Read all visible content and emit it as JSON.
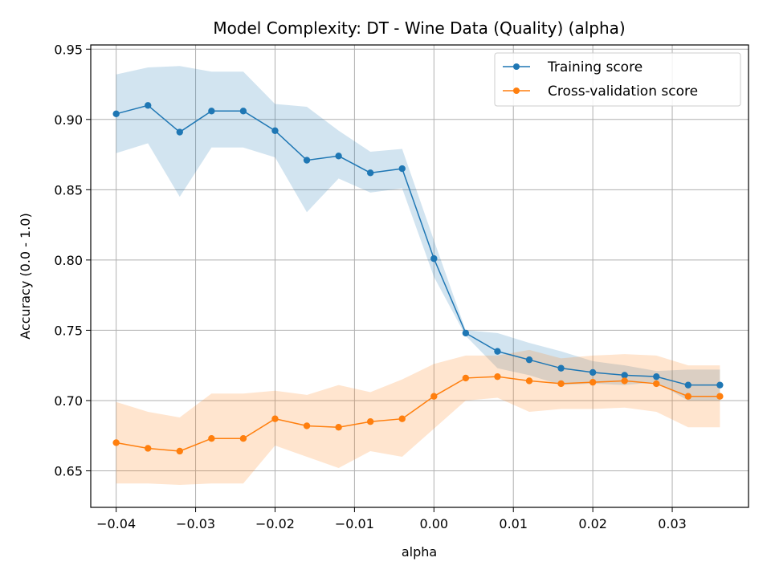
{
  "chart_data": {
    "type": "line",
    "title": "Model Complexity: DT - Wine Data (Quality) (alpha)",
    "xlabel": "alpha",
    "ylabel": "Accuracy (0.0 - 1.0)",
    "xlim": [
      -0.0432,
      0.0396
    ],
    "ylim": [
      0.624,
      0.953
    ],
    "xticks": [
      -0.04,
      -0.03,
      -0.02,
      -0.01,
      0.0,
      0.01,
      0.02,
      0.03
    ],
    "xtick_labels": [
      "−0.04",
      "−0.03",
      "−0.02",
      "−0.01",
      "0.00",
      "0.01",
      "0.02",
      "0.03"
    ],
    "yticks": [
      0.65,
      0.7,
      0.75,
      0.8,
      0.85,
      0.9,
      0.95
    ],
    "ytick_labels": [
      "0.65",
      "0.70",
      "0.75",
      "0.80",
      "0.85",
      "0.90",
      "0.95"
    ],
    "grid": true,
    "legend_position": "upper-right",
    "x": [
      -0.04,
      -0.036,
      -0.032,
      -0.028,
      -0.024,
      -0.02,
      -0.016,
      -0.012,
      -0.008,
      -0.004,
      0.0,
      0.004,
      0.008,
      0.012,
      0.016,
      0.02,
      0.024,
      0.028,
      0.032,
      0.036
    ],
    "series": [
      {
        "name": "Training score",
        "color": "#1f77b4",
        "band_color": "#1f77b4",
        "values": [
          0.904,
          0.91,
          0.891,
          0.906,
          0.906,
          0.892,
          0.871,
          0.874,
          0.862,
          0.865,
          0.801,
          0.748,
          0.735,
          0.729,
          0.723,
          0.72,
          0.718,
          0.717,
          0.711,
          0.711
        ],
        "upper": [
          0.932,
          0.937,
          0.938,
          0.934,
          0.934,
          0.911,
          0.909,
          0.892,
          0.877,
          0.879,
          0.814,
          0.75,
          0.748,
          0.741,
          0.735,
          0.728,
          0.725,
          0.721,
          0.722,
          0.722
        ],
        "lower": [
          0.876,
          0.883,
          0.845,
          0.88,
          0.88,
          0.873,
          0.834,
          0.858,
          0.848,
          0.851,
          0.788,
          0.746,
          0.723,
          0.718,
          0.711,
          0.712,
          0.711,
          0.713,
          0.7,
          0.7
        ]
      },
      {
        "name": "Cross-validation score",
        "color": "#ff7f0e",
        "band_color": "#ff7f0e",
        "values": [
          0.67,
          0.666,
          0.664,
          0.673,
          0.673,
          0.687,
          0.682,
          0.681,
          0.685,
          0.687,
          0.703,
          0.716,
          0.717,
          0.714,
          0.712,
          0.713,
          0.714,
          0.712,
          0.703,
          0.703
        ],
        "upper": [
          0.699,
          0.692,
          0.688,
          0.705,
          0.705,
          0.707,
          0.704,
          0.711,
          0.706,
          0.715,
          0.726,
          0.732,
          0.732,
          0.736,
          0.73,
          0.732,
          0.733,
          0.732,
          0.725,
          0.725
        ],
        "lower": [
          0.641,
          0.641,
          0.64,
          0.641,
          0.641,
          0.668,
          0.66,
          0.652,
          0.664,
          0.66,
          0.68,
          0.7,
          0.702,
          0.692,
          0.694,
          0.694,
          0.695,
          0.692,
          0.681,
          0.681
        ]
      }
    ]
  }
}
